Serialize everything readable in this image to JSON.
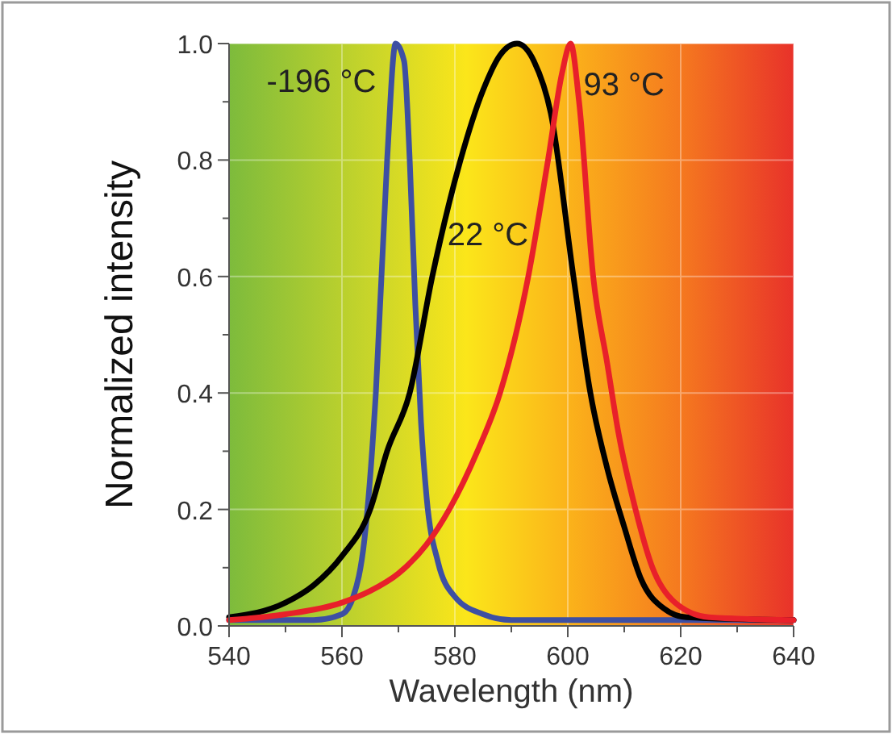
{
  "chart_data": {
    "type": "line",
    "xlabel": "Wavelength (nm)",
    "ylabel": "Normalized intensity",
    "xlim": [
      540,
      640
    ],
    "xticks": [
      540,
      {
        "value": 550,
        "label": null
      },
      560,
      {
        "value": 570,
        "label": null
      },
      580,
      {
        "value": 590,
        "label": null
      },
      600,
      {
        "value": 610,
        "label": null
      },
      620,
      {
        "value": 630,
        "label": null
      },
      640
    ],
    "ylim": [
      0,
      1
    ],
    "yticks": [
      {
        "value": 0,
        "label": "0.0"
      },
      {
        "value": 0.1,
        "label": null
      },
      0.2,
      {
        "value": 0.3,
        "label": null
      },
      0.4,
      {
        "value": 0.5,
        "label": null
      },
      0.6,
      {
        "value": 0.7,
        "label": null
      },
      0.8,
      {
        "value": 0.9,
        "label": null
      },
      {
        "value": 1,
        "label": "1.0"
      }
    ],
    "grid": true,
    "marker": "none",
    "line_style": "solid",
    "series": [
      {
        "name": "-196 °C",
        "color": "#3d4fa3",
        "x": [
          540,
          555,
          560,
          562,
          564,
          566,
          568,
          569.5,
          571,
          572,
          573,
          574,
          575,
          577,
          580,
          585,
          590,
          640
        ],
        "values": [
          0.01,
          0.01,
          0.02,
          0.05,
          0.15,
          0.4,
          0.8,
          1.0,
          0.97,
          0.8,
          0.55,
          0.35,
          0.22,
          0.11,
          0.05,
          0.02,
          0.01,
          0.01
        ]
      },
      {
        "name": "22 °C",
        "color": "#000000",
        "x": [
          540,
          550,
          555,
          560,
          565,
          568,
          572,
          576,
          581,
          585,
          588,
          591,
          594,
          597,
          601,
          604,
          607,
          610,
          613,
          617,
          621,
          640
        ],
        "values": [
          0.015,
          0.04,
          0.07,
          0.12,
          0.2,
          0.3,
          0.4,
          0.6,
          0.8,
          0.92,
          0.98,
          1.0,
          0.97,
          0.88,
          0.6,
          0.4,
          0.27,
          0.17,
          0.08,
          0.03,
          0.015,
          0.01
        ]
      },
      {
        "name": "93 °C",
        "color": "#e8202a",
        "x": [
          540,
          550,
          560,
          565,
          570,
          575,
          579,
          584,
          588,
          593,
          596.5,
          599,
          600.5,
          602,
          604.5,
          607,
          609,
          612,
          615,
          619,
          625,
          640
        ],
        "values": [
          0.01,
          0.02,
          0.04,
          0.06,
          0.09,
          0.14,
          0.2,
          0.3,
          0.4,
          0.6,
          0.8,
          0.95,
          1.0,
          0.9,
          0.6,
          0.45,
          0.33,
          0.2,
          0.1,
          0.04,
          0.015,
          0.01
        ]
      }
    ]
  }
}
